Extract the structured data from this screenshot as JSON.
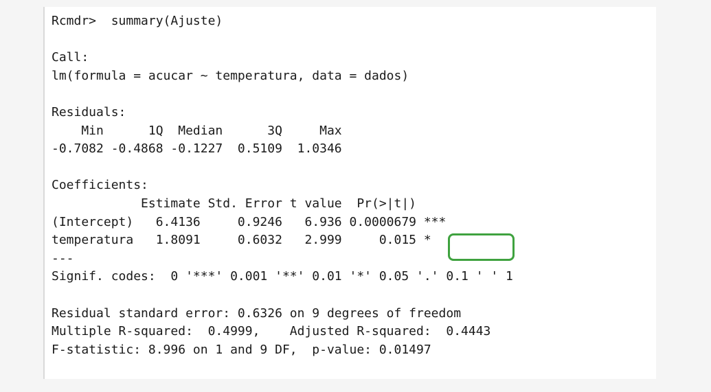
{
  "console": {
    "prompt_line": "Rcmdr>  summary(Ajuste)",
    "call_header": "Call:",
    "call_formula": "lm(formula = acucar ~ temperatura, data = dados)",
    "residuals_header": "Residuals:",
    "residuals_labels": "    Min      1Q  Median      3Q     Max",
    "residuals_values": "-0.7082 -0.4868 -0.1227  0.5109  1.0346",
    "coefficients_header": "Coefficients:",
    "coefficients_columns": "            Estimate Std. Error t value  Pr(>|t|)",
    "coef_intercept": "(Intercept)   6.4136     0.9246   6.936 0.0000679 ***",
    "coef_temperatura": "temperatura   1.8091     0.6032   2.999     0.015 *",
    "separator": "---",
    "signif_codes": "Signif. codes:  0 '***' 0.001 '**' 0.01 '*' 0.05 '.' 0.1 ' ' 1",
    "residual_se": "Residual standard error: 0.6326 on 9 degrees of freedom",
    "r_squared": "Multiple R-squared:  0.4999,    Adjusted R-squared:  0.4443",
    "f_statistic": "F-statistic: 8.996 on 1 and 9 DF,  p-value: 0.01497"
  },
  "annotation": {
    "highlight_color": "#3fa23f",
    "highlighted_value": "0.015"
  }
}
